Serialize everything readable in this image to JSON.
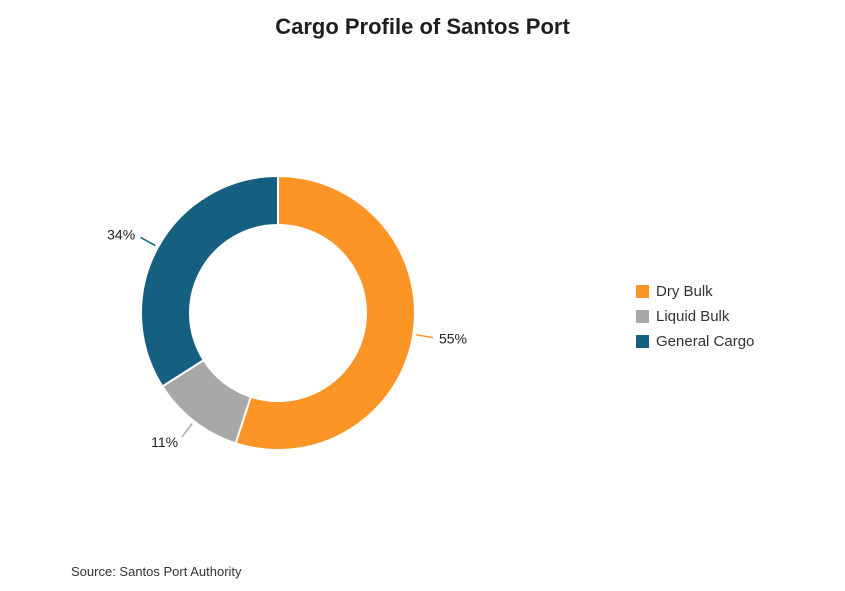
{
  "chart_data": {
    "type": "pie",
    "title": "Cargo Profile of Santos Port",
    "categories": [
      "Dry Bulk",
      "Liquid Bulk",
      "General Cargo"
    ],
    "values": [
      55,
      11,
      34
    ],
    "value_labels": [
      "55%",
      "11%",
      "34%"
    ],
    "colors": [
      "#fd9426",
      "#a8a8a8",
      "#155f81"
    ],
    "donut": true,
    "legend_position": "right",
    "source": "Source: Santos Port Authority"
  }
}
